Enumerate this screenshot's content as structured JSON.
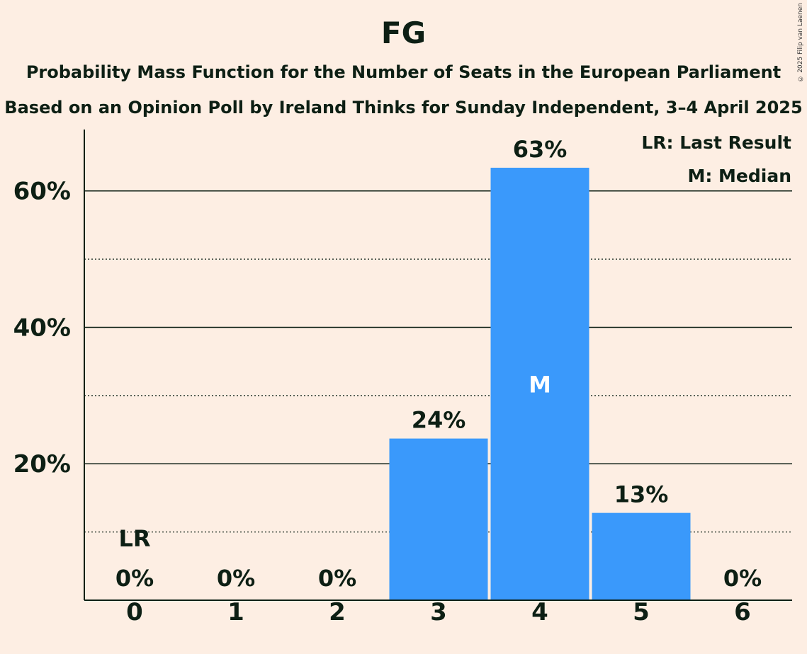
{
  "title": "FG",
  "subtitle": "Probability Mass Function for the Number of Seats in the European Parliament",
  "subtitle2": "Based on an Opinion Poll by Ireland Thinks for Sunday Independent, 3–4 April 2025",
  "copyright": "© 2025 Filip van Laenen",
  "legend": {
    "lr": "LR: Last Result",
    "m": "M: Median"
  },
  "colors": {
    "background": "#FDEEE3",
    "bar": "#3A99FB",
    "text": "#0d1f14"
  },
  "chart_data": {
    "type": "bar",
    "categories": [
      "0",
      "1",
      "2",
      "3",
      "4",
      "5",
      "6"
    ],
    "values": [
      0,
      0,
      0,
      23.7,
      63.4,
      12.8,
      0
    ],
    "value_labels": [
      "0%",
      "0%",
      "0%",
      "24%",
      "63%",
      "13%",
      "0%"
    ],
    "ylim": [
      0,
      69
    ],
    "yticks": [
      20,
      40,
      60
    ],
    "ytick_labels": [
      "20%",
      "40%",
      "60%"
    ],
    "minor_gridlines": [
      10,
      30,
      50
    ],
    "last_result_index": 0,
    "last_result_label": "LR",
    "median_index": 4,
    "median_label": "M",
    "legend_position": "top-right"
  }
}
